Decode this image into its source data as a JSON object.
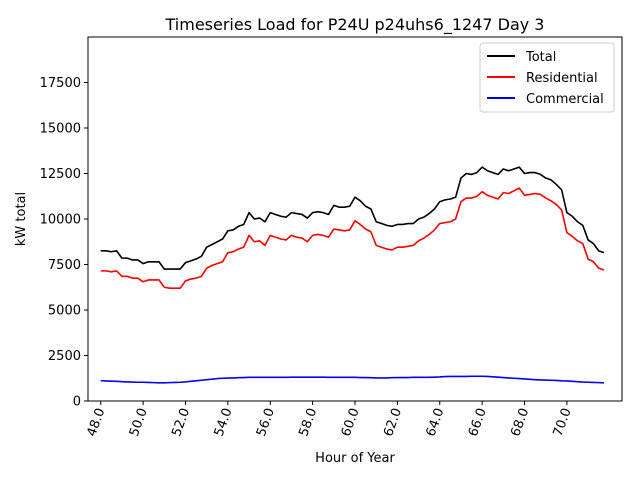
{
  "chart_data": {
    "type": "line",
    "title": "Timeseries Load for P24U p24uhs6_1247  Day 3",
    "xlabel": "Hour of Year",
    "ylabel": "kW total",
    "xlim": [
      47.4,
      72.6
    ],
    "ylim": [
      0,
      20000
    ],
    "xticks": [
      48.0,
      50.0,
      52.0,
      54.0,
      56.0,
      58.0,
      60.0,
      62.0,
      64.0,
      66.0,
      68.0,
      70.0
    ],
    "xtick_labels": [
      "48.0",
      "50.0",
      "52.0",
      "54.0",
      "56.0",
      "58.0",
      "60.0",
      "62.0",
      "64.0",
      "66.0",
      "68.0",
      "70.0"
    ],
    "yticks": [
      0,
      2500,
      5000,
      7500,
      10000,
      12500,
      15000,
      17500
    ],
    "ytick_labels": [
      "0",
      "2500",
      "5000",
      "7500",
      "10000",
      "12500",
      "15000",
      "17500"
    ],
    "legend_position": "top-right",
    "x": [
      48.0,
      48.25,
      48.5,
      48.75,
      49.0,
      49.25,
      49.5,
      49.75,
      50.0,
      50.25,
      50.5,
      50.75,
      51.0,
      51.25,
      51.5,
      51.75,
      52.0,
      52.25,
      52.5,
      52.75,
      53.0,
      53.25,
      53.5,
      53.75,
      54.0,
      54.25,
      54.5,
      54.75,
      55.0,
      55.25,
      55.5,
      55.75,
      56.0,
      56.25,
      56.5,
      56.75,
      57.0,
      57.25,
      57.5,
      57.75,
      58.0,
      58.25,
      58.5,
      58.75,
      59.0,
      59.25,
      59.5,
      59.75,
      60.0,
      60.25,
      60.5,
      60.75,
      61.0,
      61.25,
      61.5,
      61.75,
      62.0,
      62.25,
      62.5,
      62.75,
      63.0,
      63.25,
      63.5,
      63.75,
      64.0,
      64.25,
      64.5,
      64.75,
      65.0,
      65.25,
      65.5,
      65.75,
      66.0,
      66.25,
      66.5,
      66.75,
      67.0,
      67.25,
      67.5,
      67.75,
      68.0,
      68.25,
      68.5,
      68.75,
      69.0,
      69.25,
      69.5,
      69.75,
      70.0,
      70.25,
      70.5,
      70.75,
      71.0,
      71.25,
      71.5,
      71.75
    ],
    "series": [
      {
        "name": "Total",
        "color": "#000000",
        "values": [
          8250,
          8250,
          8200,
          8250,
          7850,
          7850,
          7750,
          7750,
          7550,
          7650,
          7650,
          7650,
          7250,
          7250,
          7250,
          7250,
          7600,
          7700,
          7800,
          7950,
          8450,
          8600,
          8750,
          8900,
          9350,
          9400,
          9600,
          9700,
          10350,
          10000,
          10050,
          9850,
          10350,
          10250,
          10150,
          10100,
          10350,
          10300,
          10250,
          10050,
          10350,
          10400,
          10350,
          10250,
          10750,
          10650,
          10650,
          10700,
          11200,
          11000,
          10700,
          10550,
          9850,
          9750,
          9650,
          9600,
          9700,
          9700,
          9750,
          9750,
          10000,
          10100,
          10300,
          10550,
          10950,
          11050,
          11100,
          11200,
          12250,
          12500,
          12450,
          12550,
          12850,
          12650,
          12550,
          12450,
          12750,
          12650,
          12750,
          12850,
          12500,
          12550,
          12550,
          12450,
          12250,
          12150,
          11900,
          11600,
          10350,
          10150,
          9850,
          9650,
          8850,
          8650,
          8250,
          8150
        ]
      },
      {
        "name": "Residential",
        "color": "#ff0000",
        "values": [
          7150,
          7150,
          7100,
          7150,
          6850,
          6850,
          6750,
          6750,
          6550,
          6650,
          6650,
          6650,
          6250,
          6200,
          6200,
          6200,
          6600,
          6700,
          6750,
          6850,
          7300,
          7450,
          7550,
          7650,
          8150,
          8200,
          8350,
          8450,
          9100,
          8750,
          8800,
          8550,
          9100,
          9000,
          8900,
          8850,
          9100,
          9000,
          8950,
          8750,
          9100,
          9150,
          9100,
          9000,
          9450,
          9400,
          9350,
          9400,
          9900,
          9700,
          9450,
          9300,
          8550,
          8450,
          8350,
          8300,
          8450,
          8450,
          8500,
          8550,
          8800,
          8950,
          9150,
          9400,
          9750,
          9800,
          9850,
          10000,
          10950,
          11150,
          11150,
          11250,
          11500,
          11300,
          11200,
          11100,
          11450,
          11400,
          11550,
          11700,
          11300,
          11350,
          11400,
          11350,
          11150,
          11000,
          10800,
          10500,
          9250,
          9050,
          8800,
          8650,
          7800,
          7650,
          7300,
          7200
        ]
      },
      {
        "name": "Commercial",
        "color": "#0000ff",
        "values": [
          1120,
          1100,
          1090,
          1080,
          1060,
          1050,
          1040,
          1030,
          1030,
          1020,
          1010,
          1000,
          1000,
          1010,
          1020,
          1030,
          1050,
          1080,
          1110,
          1140,
          1170,
          1200,
          1230,
          1250,
          1260,
          1270,
          1280,
          1290,
          1300,
          1300,
          1300,
          1300,
          1300,
          1300,
          1300,
          1300,
          1310,
          1310,
          1310,
          1310,
          1310,
          1310,
          1310,
          1300,
          1300,
          1300,
          1300,
          1300,
          1300,
          1290,
          1290,
          1280,
          1270,
          1270,
          1270,
          1280,
          1290,
          1290,
          1290,
          1300,
          1300,
          1300,
          1300,
          1310,
          1320,
          1340,
          1350,
          1350,
          1350,
          1350,
          1360,
          1360,
          1360,
          1350,
          1330,
          1310,
          1290,
          1270,
          1250,
          1230,
          1210,
          1190,
          1170,
          1160,
          1150,
          1140,
          1130,
          1110,
          1100,
          1080,
          1060,
          1040,
          1030,
          1020,
          1010,
          1000
        ]
      }
    ]
  }
}
